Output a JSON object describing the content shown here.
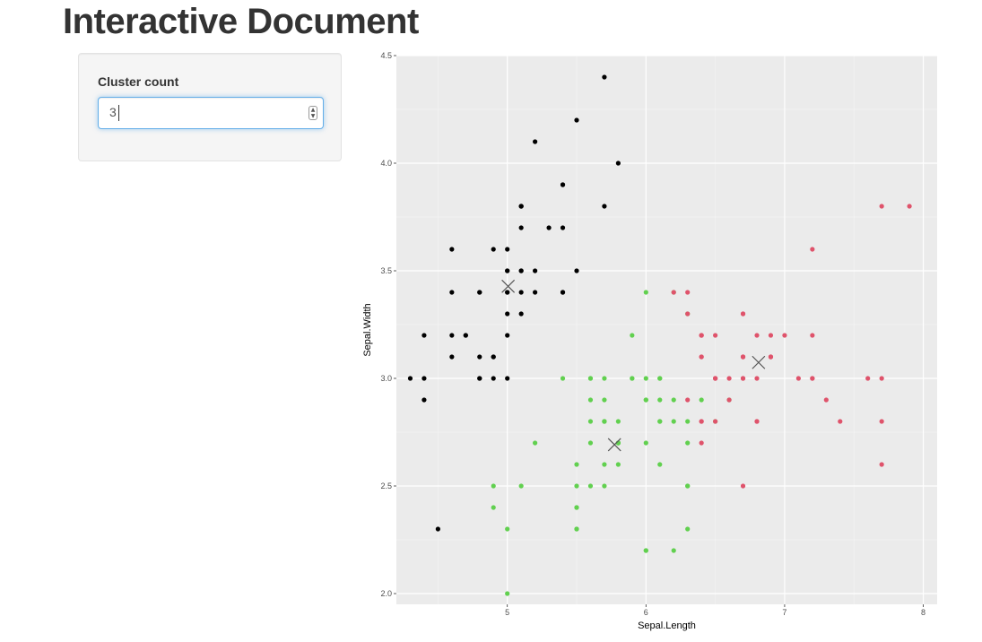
{
  "page": {
    "title": "Interactive Document"
  },
  "sidebar": {
    "cluster_label": "Cluster count",
    "cluster_value": "3"
  },
  "colors": {
    "cluster_1": "#000000",
    "cluster_2": "#61D04F",
    "cluster_3": "#DF536B",
    "center_marker": "#555555",
    "panel_bg": "#EBEBEB"
  },
  "chart_data": {
    "type": "scatter",
    "xlabel": "Sepal.Length",
    "ylabel": "Sepal.Width",
    "xlim": [
      4.2,
      8.1
    ],
    "ylim": [
      1.95,
      4.5
    ],
    "x_ticks": [
      5,
      6,
      7,
      8
    ],
    "x_tick_labels": [
      "5",
      "6",
      "7",
      "8"
    ],
    "y_ticks": [
      2.0,
      2.5,
      3.0,
      3.5,
      4.0,
      4.5
    ],
    "y_tick_labels": [
      "2.0",
      "2.5",
      "3.0",
      "3.5",
      "4.0",
      "4.5"
    ],
    "grid": true,
    "series": [
      {
        "cluster": 1,
        "color": "#000000",
        "points": [
          [
            5.1,
            3.5
          ],
          [
            4.9,
            3.0
          ],
          [
            4.7,
            3.2
          ],
          [
            4.6,
            3.1
          ],
          [
            5.0,
            3.6
          ],
          [
            5.4,
            3.9
          ],
          [
            4.6,
            3.4
          ],
          [
            5.0,
            3.4
          ],
          [
            4.4,
            2.9
          ],
          [
            4.9,
            3.1
          ],
          [
            5.4,
            3.7
          ],
          [
            4.8,
            3.4
          ],
          [
            4.8,
            3.0
          ],
          [
            4.3,
            3.0
          ],
          [
            5.8,
            4.0
          ],
          [
            5.7,
            4.4
          ],
          [
            5.4,
            3.9
          ],
          [
            5.1,
            3.5
          ],
          [
            5.7,
            3.8
          ],
          [
            5.1,
            3.8
          ],
          [
            5.4,
            3.4
          ],
          [
            5.1,
            3.7
          ],
          [
            4.6,
            3.6
          ],
          [
            5.1,
            3.3
          ],
          [
            4.8,
            3.4
          ],
          [
            5.0,
            3.0
          ],
          [
            5.0,
            3.4
          ],
          [
            5.2,
            3.5
          ],
          [
            5.2,
            3.4
          ],
          [
            4.7,
            3.2
          ],
          [
            4.8,
            3.1
          ],
          [
            5.4,
            3.4
          ],
          [
            5.2,
            4.1
          ],
          [
            5.5,
            4.2
          ],
          [
            4.9,
            3.1
          ],
          [
            5.0,
            3.2
          ],
          [
            5.5,
            3.5
          ],
          [
            4.9,
            3.6
          ],
          [
            4.4,
            3.0
          ],
          [
            5.1,
            3.4
          ],
          [
            5.0,
            3.5
          ],
          [
            4.5,
            2.3
          ],
          [
            4.4,
            3.2
          ],
          [
            5.0,
            3.5
          ],
          [
            5.1,
            3.8
          ],
          [
            4.8,
            3.0
          ],
          [
            5.1,
            3.8
          ],
          [
            4.6,
            3.2
          ],
          [
            5.3,
            3.7
          ],
          [
            5.0,
            3.3
          ]
        ]
      },
      {
        "cluster": 2,
        "color": "#61D04F",
        "points": [
          [
            5.7,
            2.8
          ],
          [
            5.5,
            2.3
          ],
          [
            6.5,
            2.8
          ],
          [
            5.7,
            2.8
          ],
          [
            6.3,
            3.3
          ],
          [
            4.9,
            2.4
          ],
          [
            6.6,
            2.9
          ],
          [
            5.2,
            2.7
          ],
          [
            5.0,
            2.0
          ],
          [
            5.9,
            3.0
          ],
          [
            6.0,
            2.2
          ],
          [
            6.1,
            2.9
          ],
          [
            5.6,
            2.9
          ],
          [
            5.6,
            3.0
          ],
          [
            5.8,
            2.7
          ],
          [
            6.2,
            2.2
          ],
          [
            5.6,
            2.5
          ],
          [
            5.9,
            3.2
          ],
          [
            6.1,
            2.8
          ],
          [
            6.3,
            2.5
          ],
          [
            6.1,
            2.8
          ],
          [
            6.4,
            2.9
          ],
          [
            6.0,
            2.9
          ],
          [
            5.7,
            2.6
          ],
          [
            5.5,
            2.4
          ],
          [
            5.5,
            2.4
          ],
          [
            5.8,
            2.7
          ],
          [
            6.0,
            2.7
          ],
          [
            5.4,
            3.0
          ],
          [
            6.0,
            3.4
          ],
          [
            6.3,
            2.3
          ],
          [
            5.6,
            3.0
          ],
          [
            5.5,
            2.5
          ],
          [
            5.5,
            2.6
          ],
          [
            6.1,
            3.0
          ],
          [
            5.8,
            2.6
          ],
          [
            5.0,
            2.3
          ],
          [
            5.6,
            2.7
          ],
          [
            5.7,
            3.0
          ],
          [
            5.7,
            2.9
          ],
          [
            6.2,
            2.9
          ],
          [
            5.1,
            2.5
          ],
          [
            5.7,
            2.8
          ],
          [
            5.8,
            2.7
          ],
          [
            4.9,
            2.5
          ],
          [
            5.7,
            2.5
          ],
          [
            5.8,
            2.8
          ],
          [
            6.0,
            2.2
          ],
          [
            5.6,
            2.8
          ],
          [
            6.3,
            2.7
          ],
          [
            6.2,
            2.8
          ],
          [
            6.1,
            3.0
          ],
          [
            6.3,
            2.8
          ],
          [
            6.1,
            2.6
          ],
          [
            6.0,
            3.0
          ],
          [
            5.8,
            2.7
          ],
          [
            6.3,
            2.5
          ],
          [
            5.9,
            3.0
          ],
          [
            6.0,
            2.9
          ],
          [
            5.5,
            2.3
          ],
          [
            6.2,
            3.4
          ]
        ]
      },
      {
        "cluster": 3,
        "color": "#DF536B",
        "points": [
          [
            7.0,
            3.2
          ],
          [
            6.4,
            3.2
          ],
          [
            6.9,
            3.1
          ],
          [
            6.7,
            3.1
          ],
          [
            6.8,
            2.8
          ],
          [
            6.7,
            3.0
          ],
          [
            6.3,
            3.3
          ],
          [
            7.1,
            3.0
          ],
          [
            6.5,
            3.0
          ],
          [
            7.6,
            3.0
          ],
          [
            7.3,
            2.9
          ],
          [
            6.7,
            2.5
          ],
          [
            7.2,
            3.6
          ],
          [
            6.5,
            3.2
          ],
          [
            6.4,
            2.7
          ],
          [
            6.8,
            3.0
          ],
          [
            6.4,
            3.2
          ],
          [
            6.5,
            3.0
          ],
          [
            7.7,
            3.8
          ],
          [
            7.7,
            2.6
          ],
          [
            6.9,
            3.2
          ],
          [
            7.7,
            2.8
          ],
          [
            6.7,
            3.3
          ],
          [
            7.2,
            3.2
          ],
          [
            7.2,
            3.0
          ],
          [
            7.4,
            2.8
          ],
          [
            7.9,
            3.8
          ],
          [
            6.4,
            2.8
          ],
          [
            7.7,
            3.0
          ],
          [
            6.3,
            3.4
          ],
          [
            6.4,
            3.1
          ],
          [
            6.9,
            3.1
          ],
          [
            6.7,
            3.1
          ],
          [
            6.9,
            3.1
          ],
          [
            6.8,
            3.2
          ],
          [
            6.7,
            3.3
          ],
          [
            6.7,
            3.0
          ],
          [
            6.5,
            3.0
          ],
          [
            6.2,
            3.4
          ],
          [
            6.6,
            3.0
          ],
          [
            6.4,
            2.8
          ],
          [
            7.2,
            3.0
          ],
          [
            6.6,
            2.9
          ],
          [
            6.8,
            2.8
          ],
          [
            6.7,
            3.1
          ],
          [
            6.4,
            3.2
          ],
          [
            6.5,
            2.8
          ],
          [
            6.3,
            2.9
          ],
          [
            6.4,
            3.1
          ]
        ]
      }
    ],
    "centers": [
      {
        "cluster": 1,
        "x": 5.006,
        "y": 3.428
      },
      {
        "cluster": 2,
        "x": 5.773,
        "y": 2.692
      },
      {
        "cluster": 3,
        "x": 6.812,
        "y": 3.074
      }
    ]
  }
}
